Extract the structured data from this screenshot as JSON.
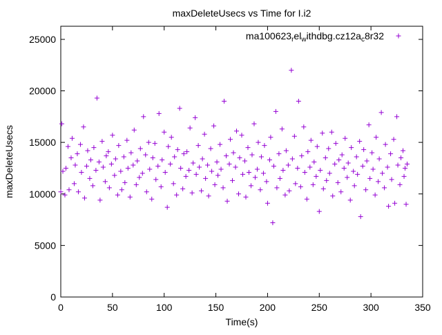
{
  "title": "maxDeleteUsecs vs Time for I.i2",
  "legend": {
    "label": "ma100623_rel_withdbg.cz12a_c8r32",
    "segments": [
      {
        "t": "ma100623"
      },
      {
        "t": "r",
        "sub": true
      },
      {
        "t": "el"
      },
      {
        "t": "w",
        "sub": true
      },
      {
        "t": "ithdbg.cz12a"
      },
      {
        "t": "c",
        "sub": true
      },
      {
        "t": "8r32"
      }
    ],
    "marker_color": "#9400d3"
  },
  "chart_data": {
    "type": "scatter",
    "title": "maxDeleteUsecs vs Time for I.i2",
    "xlabel": "Time(s)",
    "ylabel": "maxDeleteUsecs",
    "xlim": [
      0,
      350
    ],
    "ylim": [
      0,
      25000
    ],
    "x_ticks": [
      0,
      50,
      100,
      150,
      200,
      250,
      300,
      350
    ],
    "y_ticks": [
      0,
      5000,
      10000,
      15000,
      20000,
      25000
    ],
    "grid": false,
    "legend_position": "top-right-inside",
    "marker": "plus",
    "color": "#9400d3",
    "series": [
      {
        "name": "ma100623_rel_withdbg.cz12a_c8r32",
        "points": [
          [
            0,
            10200
          ],
          [
            1,
            16800
          ],
          [
            2,
            12200
          ],
          [
            4,
            9900
          ],
          [
            5,
            12500
          ],
          [
            7,
            14600
          ],
          [
            8,
            10400
          ],
          [
            10,
            13500
          ],
          [
            11,
            15400
          ],
          [
            13,
            11000
          ],
          [
            14,
            12800
          ],
          [
            16,
            13900
          ],
          [
            17,
            10200
          ],
          [
            19,
            14800
          ],
          [
            20,
            12100
          ],
          [
            22,
            16500
          ],
          [
            23,
            9600
          ],
          [
            25,
            12700
          ],
          [
            26,
            14200
          ],
          [
            28,
            11500
          ],
          [
            29,
            13300
          ],
          [
            31,
            10800
          ],
          [
            32,
            14500
          ],
          [
            34,
            12300
          ],
          [
            35,
            19300
          ],
          [
            37,
            13100
          ],
          [
            38,
            9400
          ],
          [
            40,
            15100
          ],
          [
            41,
            12600
          ],
          [
            43,
            11200
          ],
          [
            44,
            13700
          ],
          [
            46,
            14100
          ],
          [
            47,
            10600
          ],
          [
            49,
            12900
          ],
          [
            50,
            15700
          ],
          [
            52,
            11800
          ],
          [
            53,
            13400
          ],
          [
            55,
            9900
          ],
          [
            56,
            14700
          ],
          [
            58,
            12200
          ],
          [
            59,
            10400
          ],
          [
            61,
            13600
          ],
          [
            62,
            11100
          ],
          [
            64,
            15200
          ],
          [
            65,
            12500
          ],
          [
            67,
            9700
          ],
          [
            68,
            14000
          ],
          [
            70,
            12800
          ],
          [
            71,
            16200
          ],
          [
            73,
            10900
          ],
          [
            74,
            13200
          ],
          [
            76,
            11600
          ],
          [
            77,
            14400
          ],
          [
            79,
            12000
          ],
          [
            80,
            17500
          ],
          [
            82,
            13800
          ],
          [
            83,
            10200
          ],
          [
            85,
            15000
          ],
          [
            86,
            12400
          ],
          [
            88,
            9500
          ],
          [
            89,
            13500
          ],
          [
            91,
            14900
          ],
          [
            92,
            11400
          ],
          [
            94,
            12700
          ],
          [
            95,
            17800
          ],
          [
            97,
            10700
          ],
          [
            98,
            13300
          ],
          [
            100,
            16000
          ],
          [
            101,
            12100
          ],
          [
            103,
            8700
          ],
          [
            104,
            14600
          ],
          [
            106,
            12900
          ],
          [
            107,
            15500
          ],
          [
            109,
            11000
          ],
          [
            110,
            13600
          ],
          [
            112,
            9900
          ],
          [
            113,
            14300
          ],
          [
            115,
            18300
          ],
          [
            116,
            12500
          ],
          [
            118,
            10500
          ],
          [
            119,
            13900
          ],
          [
            121,
            11700
          ],
          [
            122,
            14100
          ],
          [
            124,
            12300
          ],
          [
            125,
            16400
          ],
          [
            127,
            10100
          ],
          [
            128,
            13000
          ],
          [
            130,
            17400
          ],
          [
            131,
            11900
          ],
          [
            133,
            14700
          ],
          [
            134,
            12600
          ],
          [
            136,
            10300
          ],
          [
            137,
            13400
          ],
          [
            139,
            15800
          ],
          [
            140,
            11500
          ],
          [
            142,
            12800
          ],
          [
            143,
            9800
          ],
          [
            145,
            14400
          ],
          [
            146,
            12200
          ],
          [
            148,
            16600
          ],
          [
            149,
            10900
          ],
          [
            151,
            13100
          ],
          [
            152,
            11800
          ],
          [
            154,
            14800
          ],
          [
            155,
            12400
          ],
          [
            157,
            10600
          ],
          [
            158,
            19000
          ],
          [
            160,
            13700
          ],
          [
            161,
            9300
          ],
          [
            163,
            12900
          ],
          [
            164,
            15300
          ],
          [
            166,
            11300
          ],
          [
            167,
            14000
          ],
          [
            169,
            12600
          ],
          [
            170,
            16100
          ],
          [
            172,
            10000
          ],
          [
            173,
            13500
          ],
          [
            175,
            15700
          ],
          [
            176,
            11900
          ],
          [
            178,
            13200
          ],
          [
            179,
            9700
          ],
          [
            181,
            14500
          ],
          [
            182,
            12100
          ],
          [
            184,
            10800
          ],
          [
            185,
            13800
          ],
          [
            187,
            16800
          ],
          [
            188,
            11600
          ],
          [
            190,
            12400
          ],
          [
            191,
            15000
          ],
          [
            193,
            10400
          ],
          [
            194,
            13600
          ],
          [
            196,
            12000
          ],
          [
            197,
            14700
          ],
          [
            199,
            11200
          ],
          [
            200,
            9100
          ],
          [
            202,
            13300
          ],
          [
            203,
            15500
          ],
          [
            205,
            7200
          ],
          [
            206,
            12700
          ],
          [
            208,
            18000
          ],
          [
            209,
            10600
          ],
          [
            211,
            13900
          ],
          [
            212,
            11500
          ],
          [
            214,
            16300
          ],
          [
            215,
            12300
          ],
          [
            217,
            9900
          ],
          [
            218,
            14200
          ],
          [
            220,
            12800
          ],
          [
            221,
            10300
          ],
          [
            223,
            22000
          ],
          [
            224,
            13400
          ],
          [
            226,
            15600
          ],
          [
            227,
            11000
          ],
          [
            229,
            12500
          ],
          [
            230,
            19000
          ],
          [
            232,
            10700
          ],
          [
            233,
            13700
          ],
          [
            235,
            16500
          ],
          [
            236,
            12100
          ],
          [
            238,
            9500
          ],
          [
            239,
            14100
          ],
          [
            241,
            12600
          ],
          [
            242,
            15200
          ],
          [
            244,
            10900
          ],
          [
            245,
            13100
          ],
          [
            247,
            11700
          ],
          [
            248,
            14600
          ],
          [
            250,
            8300
          ],
          [
            251,
            12300
          ],
          [
            253,
            15900
          ],
          [
            254,
            10500
          ],
          [
            256,
            13500
          ],
          [
            257,
            11300
          ],
          [
            259,
            14400
          ],
          [
            260,
            12000
          ],
          [
            262,
            16000
          ],
          [
            263,
            9800
          ],
          [
            265,
            12900
          ],
          [
            266,
            14900
          ],
          [
            268,
            11100
          ],
          [
            269,
            13300
          ],
          [
            271,
            10200
          ],
          [
            272,
            13800
          ],
          [
            274,
            12500
          ],
          [
            275,
            15400
          ],
          [
            277,
            11600
          ],
          [
            278,
            13000
          ],
          [
            280,
            9400
          ],
          [
            281,
            14500
          ],
          [
            283,
            12200
          ],
          [
            284,
            10800
          ],
          [
            286,
            13600
          ],
          [
            287,
            11900
          ],
          [
            289,
            15100
          ],
          [
            290,
            7800
          ],
          [
            292,
            12700
          ],
          [
            293,
            14300
          ],
          [
            295,
            10400
          ],
          [
            296,
            13200
          ],
          [
            298,
            16700
          ],
          [
            299,
            11500
          ],
          [
            301,
            14000
          ],
          [
            302,
            12400
          ],
          [
            304,
            9900
          ],
          [
            305,
            15500
          ],
          [
            307,
            11200
          ],
          [
            308,
            13400
          ],
          [
            310,
            17900
          ],
          [
            311,
            12000
          ],
          [
            313,
            10600
          ],
          [
            314,
            14800
          ],
          [
            316,
            12600
          ],
          [
            317,
            8800
          ],
          [
            319,
            13900
          ],
          [
            320,
            11400
          ],
          [
            322,
            15300
          ],
          [
            323,
            9100
          ],
          [
            325,
            17500
          ],
          [
            326,
            12800
          ],
          [
            328,
            10900
          ],
          [
            329,
            13500
          ],
          [
            331,
            14200
          ],
          [
            332,
            11700
          ],
          [
            333,
            12500
          ],
          [
            334,
            9000
          ],
          [
            335,
            12900
          ]
        ]
      }
    ]
  }
}
